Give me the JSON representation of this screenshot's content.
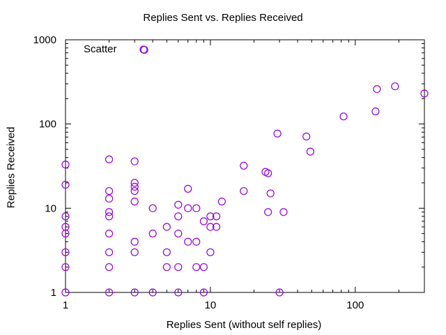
{
  "chart_data": {
    "type": "scatter",
    "title": "Replies Sent vs. Replies Received",
    "xlabel": "Replies Sent (without self replies)",
    "ylabel": "Replies Received",
    "xscale": "log",
    "yscale": "log",
    "xlim": [
      1,
      300
    ],
    "ylim": [
      1,
      1000
    ],
    "xticks": [
      "1",
      "10",
      "100"
    ],
    "yticks": [
      "1",
      "10",
      "100",
      "1000"
    ],
    "legend": "top-left",
    "marker_color": "#9400d3",
    "series": [
      {
        "name": "Scatter",
        "points": [
          [
            1,
            1
          ],
          [
            1,
            2
          ],
          [
            1,
            3
          ],
          [
            1,
            5
          ],
          [
            1,
            6
          ],
          [
            1,
            8
          ],
          [
            1,
            19
          ],
          [
            1,
            33
          ],
          [
            2,
            1
          ],
          [
            2,
            2
          ],
          [
            2,
            3
          ],
          [
            2,
            5
          ],
          [
            2,
            8
          ],
          [
            2,
            9
          ],
          [
            2,
            13
          ],
          [
            2,
            16
          ],
          [
            2,
            38
          ],
          [
            3,
            1
          ],
          [
            3,
            3
          ],
          [
            3,
            4
          ],
          [
            3,
            12
          ],
          [
            3,
            16
          ],
          [
            3,
            18
          ],
          [
            3,
            20
          ],
          [
            3,
            36
          ],
          [
            3.5,
            760
          ],
          [
            4,
            1
          ],
          [
            4,
            5
          ],
          [
            4,
            10
          ],
          [
            5,
            2
          ],
          [
            5,
            3
          ],
          [
            5,
            6
          ],
          [
            6,
            1
          ],
          [
            6,
            2
          ],
          [
            6,
            5
          ],
          [
            6,
            8
          ],
          [
            6,
            11
          ],
          [
            7,
            4
          ],
          [
            7,
            10
          ],
          [
            7,
            17
          ],
          [
            8,
            2
          ],
          [
            8,
            4
          ],
          [
            8,
            10
          ],
          [
            9,
            1
          ],
          [
            9,
            2
          ],
          [
            9,
            7
          ],
          [
            10,
            3
          ],
          [
            10,
            6
          ],
          [
            10,
            8
          ],
          [
            11,
            6
          ],
          [
            11,
            8
          ],
          [
            12,
            12
          ],
          [
            17,
            16
          ],
          [
            17,
            32
          ],
          [
            24,
            27
          ],
          [
            25,
            9
          ],
          [
            25,
            26
          ],
          [
            26,
            15
          ],
          [
            29,
            77
          ],
          [
            30,
            1
          ],
          [
            32,
            9
          ],
          [
            46,
            71
          ],
          [
            49,
            47
          ],
          [
            83,
            123
          ],
          [
            138,
            141
          ],
          [
            141,
            260
          ],
          [
            188,
            280
          ],
          [
            300,
            230
          ]
        ]
      }
    ]
  }
}
